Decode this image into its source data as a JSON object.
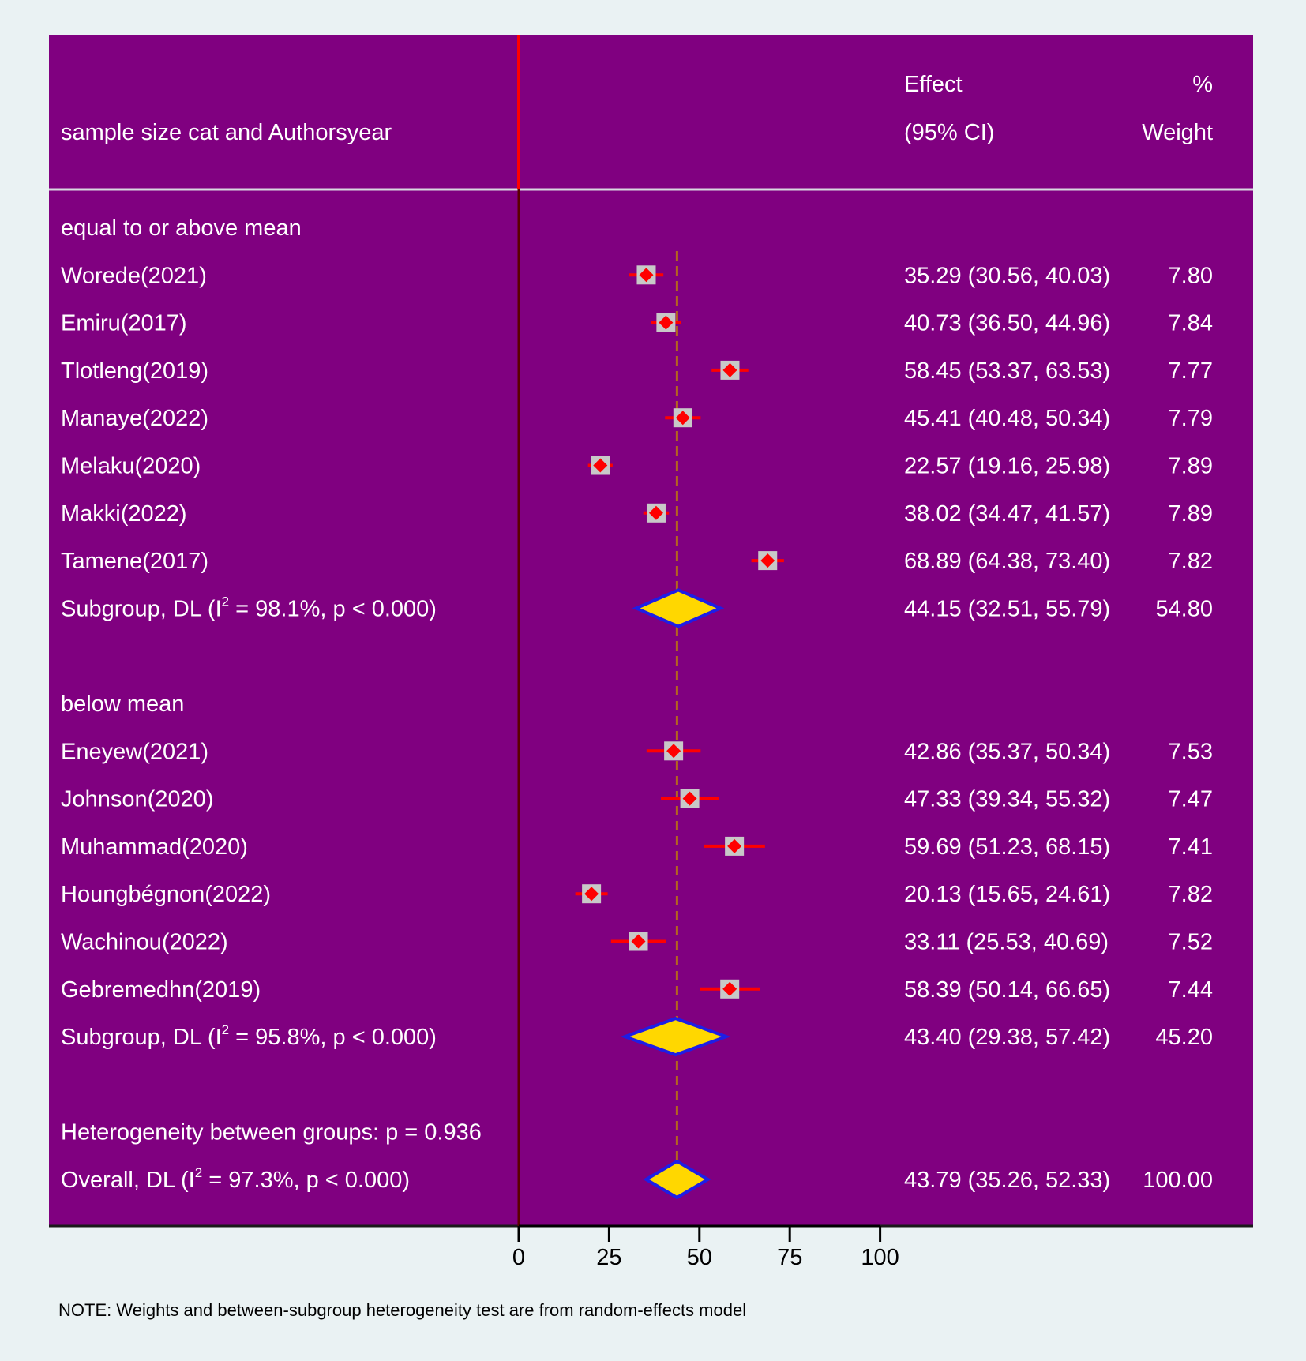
{
  "chart_data": {
    "type": "forest",
    "header": {
      "label_column": "sample size cat and Authorsyear",
      "effect_line1": "Effect",
      "effect_line2": "(95% CI)",
      "weight_line1": "%",
      "weight_line2": "Weight"
    },
    "xaxis": {
      "range": [
        0,
        100
      ],
      "ticks": [
        0,
        25,
        50,
        75,
        100
      ],
      "null_line": 0
    },
    "overall_effect": 43.79,
    "groups": [
      {
        "name": "equal to or above mean",
        "studies": [
          {
            "label": "Worede(2021)",
            "effect": 35.29,
            "lo": 30.56,
            "hi": 40.03,
            "effect_text": "35.29 (30.56, 40.03)",
            "weight": "7.80"
          },
          {
            "label": "Emiru(2017)",
            "effect": 40.73,
            "lo": 36.5,
            "hi": 44.96,
            "effect_text": "40.73 (36.50, 44.96)",
            "weight": "7.84"
          },
          {
            "label": "Tlotleng(2019)",
            "effect": 58.45,
            "lo": 53.37,
            "hi": 63.53,
            "effect_text": "58.45 (53.37, 63.53)",
            "weight": "7.77"
          },
          {
            "label": "Manaye(2022)",
            "effect": 45.41,
            "lo": 40.48,
            "hi": 50.34,
            "effect_text": "45.41 (40.48, 50.34)",
            "weight": "7.79"
          },
          {
            "label": "Melaku(2020)",
            "effect": 22.57,
            "lo": 19.16,
            "hi": 25.98,
            "effect_text": "22.57 (19.16, 25.98)",
            "weight": "7.89"
          },
          {
            "label": "Makki(2022)",
            "effect": 38.02,
            "lo": 34.47,
            "hi": 41.57,
            "effect_text": "38.02 (34.47, 41.57)",
            "weight": "7.89"
          },
          {
            "label": "Tamene(2017)",
            "effect": 68.89,
            "lo": 64.38,
            "hi": 73.4,
            "effect_text": "68.89 (64.38, 73.40)",
            "weight": "7.82"
          }
        ],
        "subgroup": {
          "label_pre": "Subgroup, DL (I",
          "label_sup": "2",
          "label_post": " = 98.1%, p < 0.000)",
          "effect": 44.15,
          "lo": 32.51,
          "hi": 55.79,
          "effect_text": "44.15 (32.51, 55.79)",
          "weight": "54.80"
        }
      },
      {
        "name": "below mean",
        "studies": [
          {
            "label": "Eneyew(2021)",
            "effect": 42.86,
            "lo": 35.37,
            "hi": 50.34,
            "effect_text": "42.86 (35.37, 50.34)",
            "weight": "7.53"
          },
          {
            "label": "Johnson(2020)",
            "effect": 47.33,
            "lo": 39.34,
            "hi": 55.32,
            "effect_text": "47.33 (39.34, 55.32)",
            "weight": "7.47"
          },
          {
            "label": "Muhammad(2020)",
            "effect": 59.69,
            "lo": 51.23,
            "hi": 68.15,
            "effect_text": "59.69 (51.23, 68.15)",
            "weight": "7.41"
          },
          {
            "label": "Houngbégnon(2022)",
            "effect": 20.13,
            "lo": 15.65,
            "hi": 24.61,
            "effect_text": "20.13 (15.65, 24.61)",
            "weight": "7.82"
          },
          {
            "label": "Wachinou(2022)",
            "effect": 33.11,
            "lo": 25.53,
            "hi": 40.69,
            "effect_text": "33.11 (25.53, 40.69)",
            "weight": "7.52"
          },
          {
            "label": "Gebremedhn(2019)",
            "effect": 58.39,
            "lo": 50.14,
            "hi": 66.65,
            "effect_text": "58.39 (50.14, 66.65)",
            "weight": "7.44"
          }
        ],
        "subgroup": {
          "label_pre": "Subgroup, DL (I",
          "label_sup": "2",
          "label_post": " = 95.8%, p < 0.000)",
          "effect": 43.4,
          "lo": 29.38,
          "hi": 57.42,
          "effect_text": "43.40 (29.38, 57.42)",
          "weight": "45.20"
        }
      }
    ],
    "heterogeneity_text": "Heterogeneity between groups: p = 0.936",
    "overall": {
      "label_pre": "Overall, DL (I",
      "label_sup": "2",
      "label_post": " = 97.3%, p < 0.000)",
      "effect": 43.79,
      "lo": 35.26,
      "hi": 52.33,
      "effect_text": "43.79 (35.26, 52.33)",
      "weight": "100.00"
    },
    "note": "NOTE: Weights and between-subgroup heterogeneity test are from random-effects model",
    "colors": {
      "page_bg": "#eaf2f3",
      "panel_bg": "#800080",
      "text": "#ffffff",
      "null_line": "#ff0000",
      "ci_line": "#ff0000",
      "study_box": "#c8c8c8",
      "study_point": "#ff0000",
      "diamond_fill": "#ffd700",
      "diamond_stroke": "#1e1ee6",
      "overall_line": "#b5651d",
      "axis": "#000000"
    }
  }
}
